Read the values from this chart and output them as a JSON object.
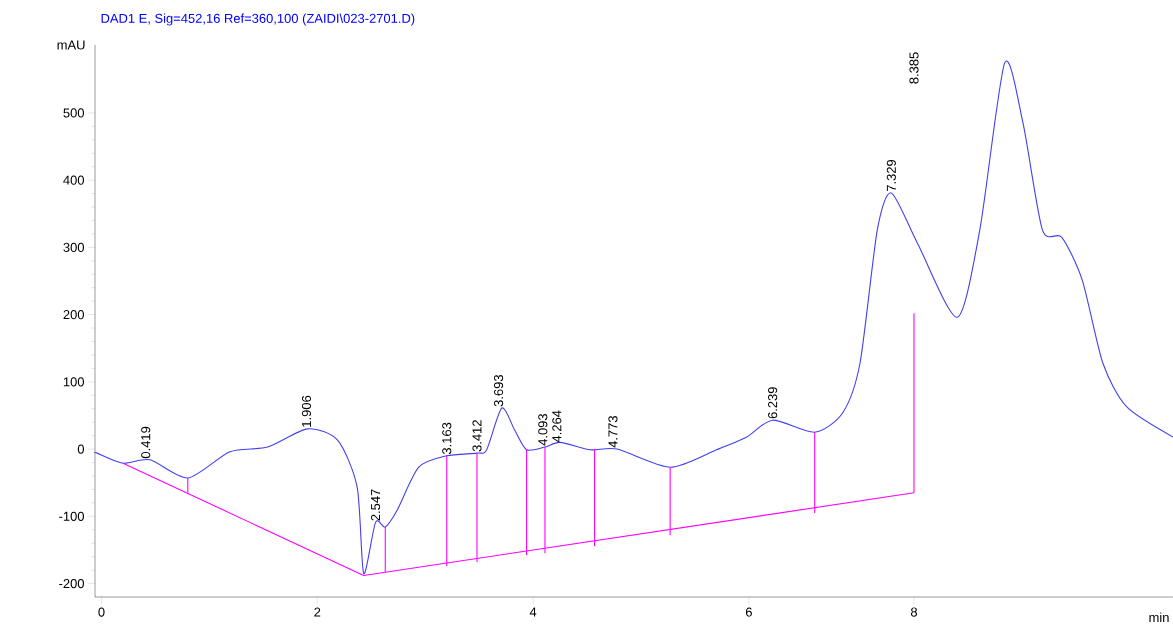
{
  "chart_data": {
    "type": "line",
    "title": "DAD1 E, Sig=452,16 Ref=360,100 (ZAIDI\\023-2701.D)",
    "xlabel": "min",
    "ylabel": "mAU",
    "xlim": [
      -0.06,
      9.93
    ],
    "ylim": [
      -220,
      601
    ],
    "xticks": [
      0,
      2,
      4,
      6,
      {
        "value": 7.53,
        "label": "8"
      }
    ],
    "yticks": [
      -200,
      -100,
      0,
      100,
      200,
      300,
      400,
      500
    ],
    "grid": false,
    "marker": "none",
    "line_style": "solid",
    "series": [
      {
        "color": "#4040f0",
        "x": [
          -0.06,
          -0.04,
          0.2,
          0.45,
          0.8,
          1.19,
          1.54,
          1.91,
          2.19,
          2.37,
          2.43,
          2.54,
          2.63,
          2.74,
          2.94,
          3.2,
          3.48,
          3.57,
          3.71,
          3.83,
          3.94,
          4.11,
          4.25,
          4.53,
          4.78,
          5.27,
          5.7,
          5.98,
          6.22,
          6.61,
          6.87,
          7.03,
          7.19,
          7.32,
          7.56,
          7.93,
          8.14,
          8.37,
          8.54,
          8.72,
          8.9,
          9.09,
          9.28,
          9.5,
          9.93
        ],
        "values": [
          -5,
          -6,
          -21,
          -16,
          -43,
          -4,
          3,
          30,
          13,
          -57,
          -185,
          -109,
          -116,
          -91,
          -27,
          -10,
          -6,
          -1,
          61,
          28,
          -1,
          3,
          10,
          -1,
          0,
          -27,
          -1,
          18,
          43,
          25,
          54,
          128,
          326,
          381,
          307,
          196,
          326,
          574,
          485,
          326,
          315,
          251,
          128,
          63,
          18
        ]
      },
      {
        "type": "line",
        "color": "#ff00ff",
        "x": [
          0.2,
          2.43,
          7.53
        ],
        "values": [
          -21,
          -188,
          -65
        ]
      },
      {
        "type": "line",
        "color": "#ff00ff",
        "x": [
          0.8,
          0.8,
          null,
          2.63,
          2.63,
          null,
          3.2,
          3.2,
          null,
          3.48,
          3.48,
          null,
          3.94,
          3.94,
          null,
          4.11,
          4.11,
          null,
          4.57,
          4.57,
          null,
          5.27,
          5.27,
          null,
          6.61,
          6.61,
          null,
          7.53,
          7.53
        ],
        "values": [
          -65,
          -43,
          null,
          -183,
          -116,
          null,
          -174,
          -10,
          null,
          -168,
          -6,
          null,
          -158,
          -1,
          null,
          -155,
          3,
          null,
          -144,
          0,
          null,
          -128,
          -27,
          null,
          -95,
          25,
          null,
          -65,
          202
        ]
      }
    ],
    "annotations": [
      {
        "text": "0.419",
        "x": 0.41,
        "y": -16
      },
      {
        "text": "1.906",
        "x": 1.9,
        "y": 30
      },
      {
        "text": "2.547",
        "x": 2.54,
        "y": -109
      },
      {
        "text": "3.163",
        "x": 3.2,
        "y": -10
      },
      {
        "text": "3.412",
        "x": 3.48,
        "y": -6
      },
      {
        "text": "3.693",
        "x": 3.68,
        "y": 61
      },
      {
        "text": "4.093",
        "x": 4.09,
        "y": 3
      },
      {
        "text": "4.264",
        "x": 4.22,
        "y": 8
      },
      {
        "text": "4.773",
        "x": 4.74,
        "y": 0
      },
      {
        "text": "6.239",
        "x": 6.22,
        "y": 43
      },
      {
        "text": "7.329",
        "x": 7.32,
        "y": 381
      },
      "8.385"
    ]
  }
}
